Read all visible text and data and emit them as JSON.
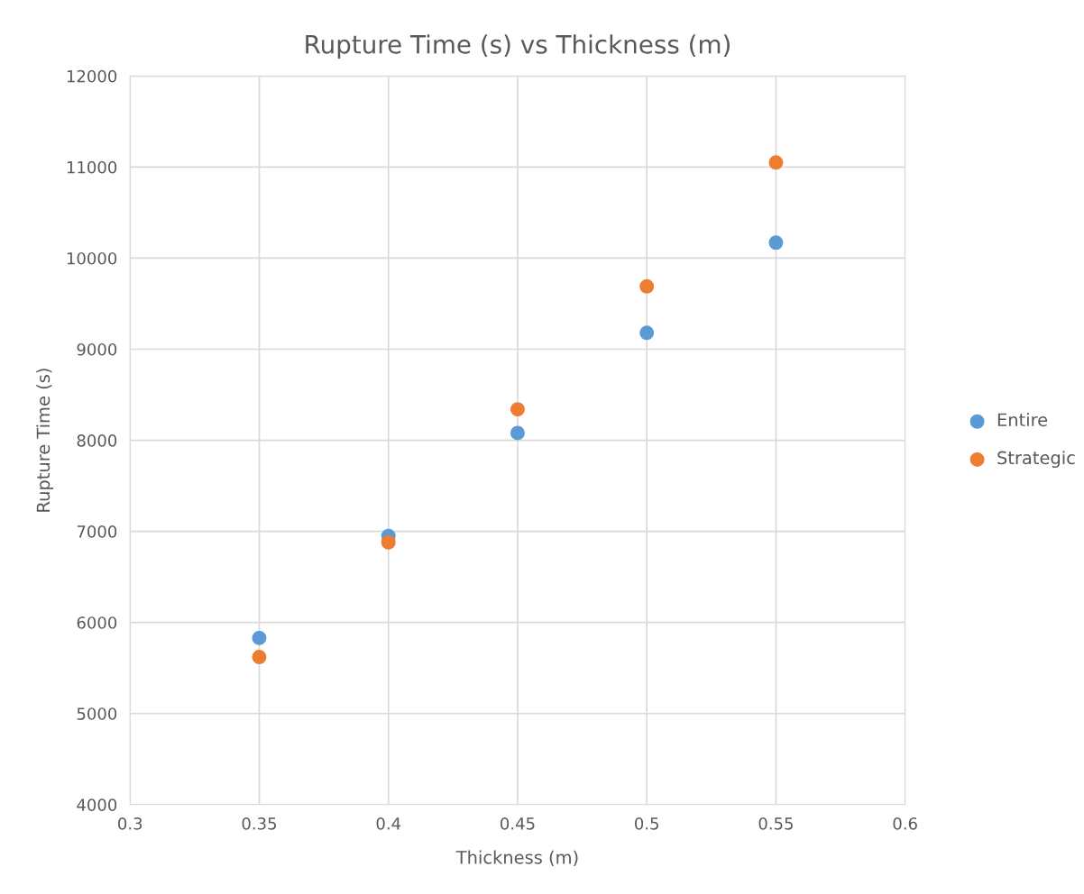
{
  "chart_data": {
    "type": "scatter",
    "title": "Rupture Time (s) vs Thickness (m)",
    "xlabel": "Thickness (m)",
    "ylabel": "Rupture Time (s)",
    "series": [
      {
        "name": "Entire",
        "color": "#5b9bd5",
        "x": [
          0.35,
          0.4,
          0.45,
          0.5,
          0.55
        ],
        "values": [
          5830,
          6950,
          8080,
          9180,
          10170
        ]
      },
      {
        "name": "Strategic",
        "color": "#ed7d31",
        "x": [
          0.35,
          0.4,
          0.45,
          0.5,
          0.55
        ],
        "values": [
          5620,
          6880,
          8340,
          9690,
          11050
        ]
      }
    ],
    "xlim": [
      0.3,
      0.6
    ],
    "xticks": [
      0.3,
      0.35,
      0.4,
      0.45,
      0.5,
      0.55,
      0.6
    ],
    "ylim": [
      4000,
      12000
    ],
    "yticks": [
      4000,
      5000,
      6000,
      7000,
      8000,
      9000,
      10000,
      11000,
      12000
    ],
    "grid": true,
    "legend": "right",
    "marker": "circle"
  }
}
